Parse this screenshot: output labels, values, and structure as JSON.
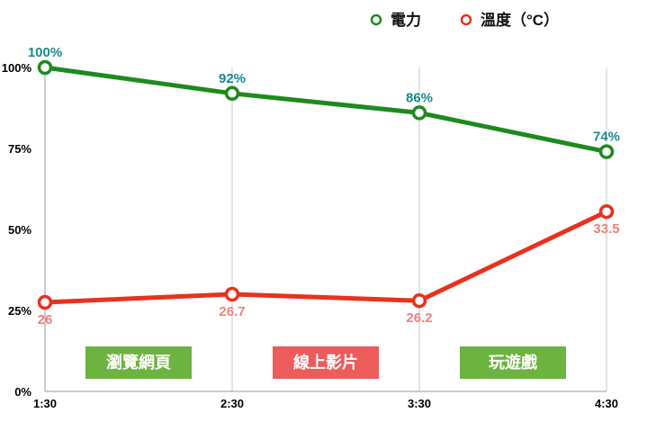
{
  "chart_data": {
    "type": "line",
    "x": [
      "1:30",
      "2:30",
      "3:30",
      "4:30"
    ],
    "y_ticks": [
      "0%",
      "25%",
      "50%",
      "75%",
      "100%"
    ],
    "ylim": [
      0,
      100
    ],
    "grid": "vertical",
    "legend_position": "top-right",
    "series": [
      {
        "name": "電力",
        "color": "#1e8a1e",
        "values": [
          100,
          92,
          86,
          74
        ],
        "labels": [
          "100%",
          "92%",
          "86%",
          "74%"
        ],
        "label_color": "#1a8a8a"
      },
      {
        "name": "溫度（°C）",
        "color": "#e8321e",
        "values": [
          26,
          26.7,
          26.2,
          33.5
        ],
        "labels": [
          "26",
          "26.7",
          "26.2",
          "33.5"
        ],
        "label_color": "#f08080",
        "plotted_percent": [
          27.5,
          30,
          28,
          55.5
        ]
      }
    ],
    "annotations": [
      {
        "text": "瀏覽網頁",
        "color": "#6db33f",
        "span": [
          "1:30",
          "2:30"
        ]
      },
      {
        "text": "線上影片",
        "color": "#ee5b5b",
        "span": [
          "2:30",
          "3:30"
        ]
      },
      {
        "text": "玩遊戲",
        "color": "#6db33f",
        "span": [
          "3:30",
          "4:30"
        ]
      }
    ]
  }
}
